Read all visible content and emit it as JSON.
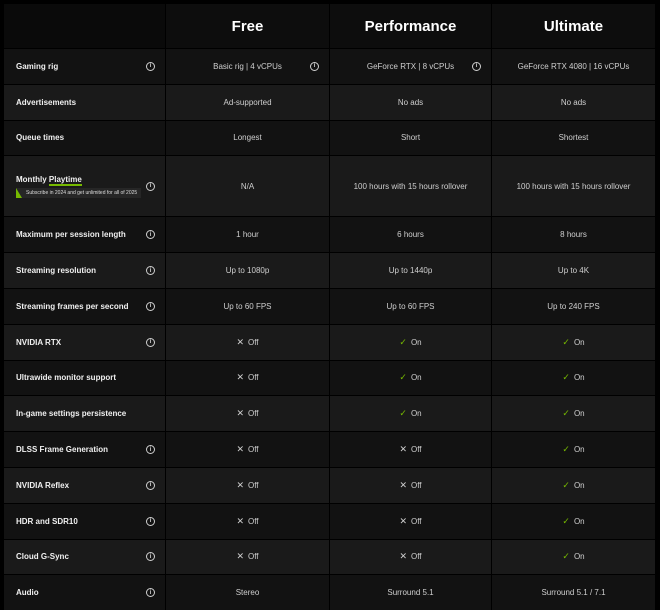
{
  "plans": [
    "Free",
    "Performance",
    "Ultimate"
  ],
  "promo": "Subscribe in 2024 and get unlimited for all of 2025",
  "rows": [
    {
      "feature": "Gaming rig",
      "info": true,
      "values": [
        "Basic rig | 4 vCPUs",
        "GeForce RTX | 8 vCPUs",
        "GeForce RTX 4080 | 16 vCPUs"
      ],
      "status": [
        "text",
        "text",
        "text"
      ]
    },
    {
      "feature": "Advertisements",
      "info": false,
      "values": [
        "Ad-supported",
        "No ads",
        "No ads"
      ],
      "status": [
        "text",
        "text",
        "text"
      ]
    },
    {
      "feature": "Queue times",
      "info": false,
      "values": [
        "Longest",
        "Short",
        "Shortest"
      ],
      "status": [
        "text",
        "text",
        "text"
      ]
    },
    {
      "feature_prefix": "Monthly ",
      "feature_underlined": "Playtime",
      "info": true,
      "values": [
        "N/A",
        "100 hours with 15 hours rollover",
        "100 hours with 15 hours rollover"
      ],
      "status": [
        "text",
        "text",
        "text"
      ]
    },
    {
      "feature": "Maximum per session length",
      "info": true,
      "values": [
        "1 hour",
        "6 hours",
        "8 hours"
      ],
      "status": [
        "text",
        "text",
        "text"
      ]
    },
    {
      "feature": "Streaming resolution",
      "info": true,
      "values": [
        "Up to 1080p",
        "Up to 1440p",
        "Up to 4K"
      ],
      "status": [
        "text",
        "text",
        "text"
      ]
    },
    {
      "feature": "Streaming frames per second",
      "info": true,
      "values": [
        "Up to 60 FPS",
        "Up to 60 FPS",
        "Up to 240 FPS"
      ],
      "status": [
        "text",
        "text",
        "text"
      ]
    },
    {
      "feature": "NVIDIA RTX",
      "info": true,
      "values": [
        "Off",
        "On",
        "On"
      ],
      "status": [
        "off",
        "on",
        "on"
      ]
    },
    {
      "feature": "Ultrawide monitor support",
      "info": false,
      "values": [
        "Off",
        "On",
        "On"
      ],
      "status": [
        "off",
        "on",
        "on"
      ]
    },
    {
      "feature": "In-game settings persistence",
      "info": false,
      "values": [
        "Off",
        "On",
        "On"
      ],
      "status": [
        "off",
        "on",
        "on"
      ]
    },
    {
      "feature": "DLSS Frame Generation",
      "info": true,
      "values": [
        "Off",
        "Off",
        "On"
      ],
      "status": [
        "off",
        "off",
        "on"
      ]
    },
    {
      "feature": "NVIDIA Reflex",
      "info": true,
      "values": [
        "Off",
        "Off",
        "On"
      ],
      "status": [
        "off",
        "off",
        "on"
      ]
    },
    {
      "feature": "HDR and SDR10",
      "info": true,
      "values": [
        "Off",
        "Off",
        "On"
      ],
      "status": [
        "off",
        "off",
        "on"
      ]
    },
    {
      "feature": "Cloud G-Sync",
      "info": true,
      "values": [
        "Off",
        "Off",
        "On"
      ],
      "status": [
        "off",
        "off",
        "on"
      ]
    },
    {
      "feature": "Audio",
      "info": true,
      "values": [
        "Stereo",
        "Surround 5.1",
        "Surround 5.1 / 7.1"
      ],
      "status": [
        "text",
        "text",
        "text"
      ]
    }
  ],
  "colors": {
    "accent": "#76b900",
    "row_dark": "#121212",
    "row_light": "#1a1a1a"
  }
}
